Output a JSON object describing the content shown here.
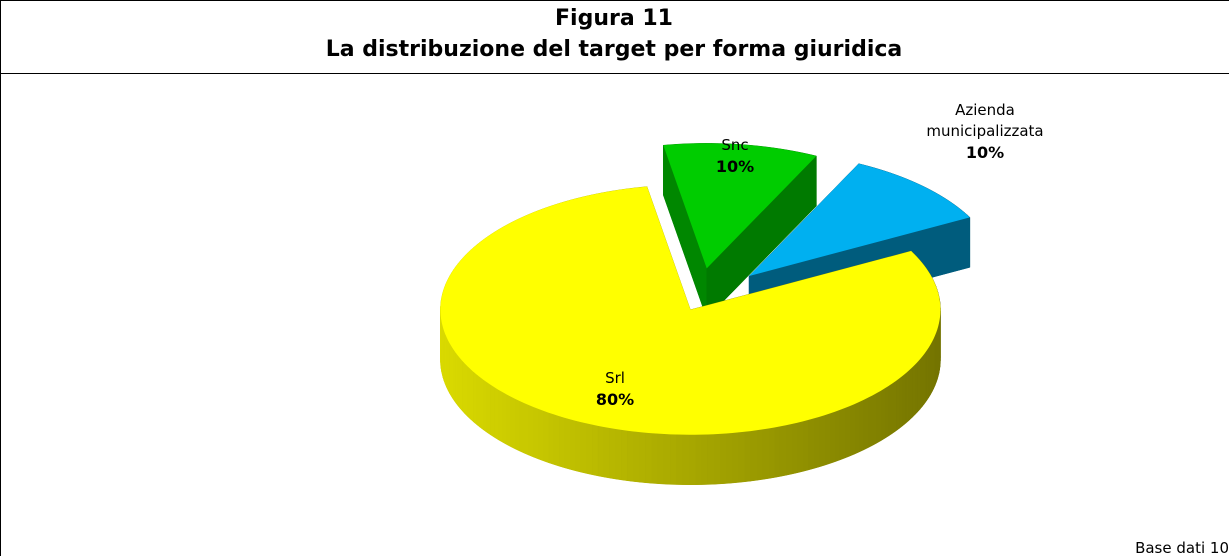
{
  "chart_data": {
    "type": "pie",
    "title": "Figura 11",
    "subtitle": "La distribuzione del target per forma giuridica",
    "categories": [
      "Snc",
      "Azienda municipalizzata",
      "Srl"
    ],
    "values": [
      10,
      10,
      80
    ],
    "value_labels": [
      "10%",
      "10%",
      "80%"
    ],
    "colors": [
      "#00cc00",
      "#00b0f0",
      "#ffff00"
    ],
    "note": "Base dati 10"
  }
}
